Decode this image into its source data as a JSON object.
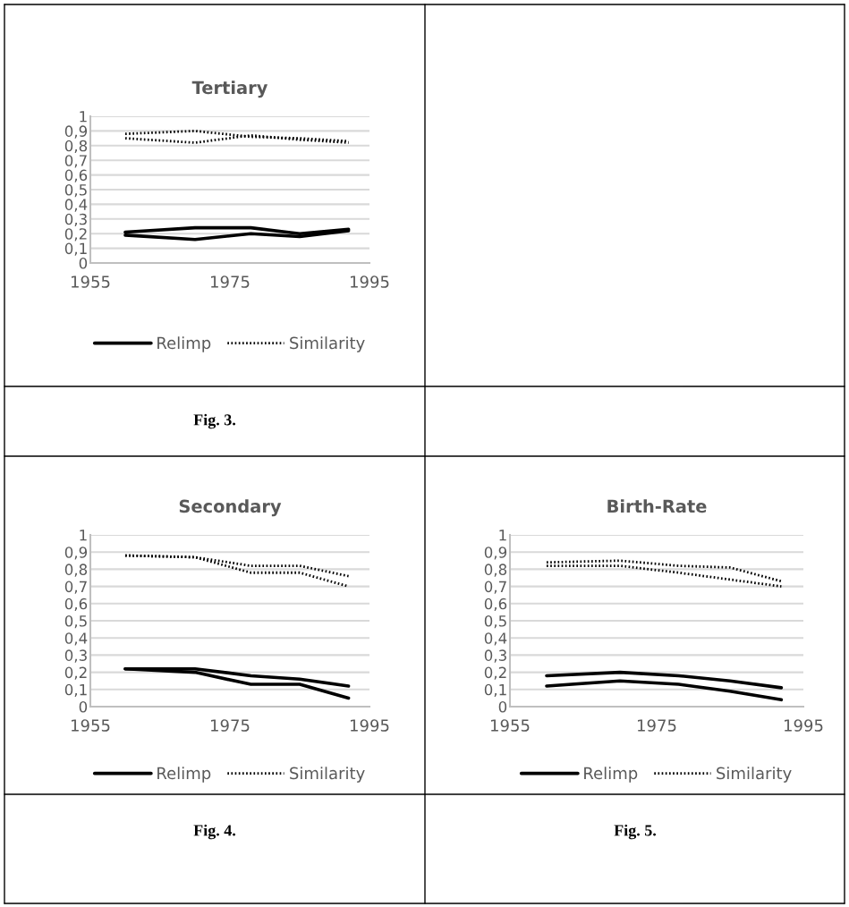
{
  "chart_data": [
    {
      "type": "line",
      "title": "Tertiary",
      "x": [
        1960,
        1970,
        1978,
        1985,
        1992
      ],
      "xlim": [
        1955,
        1995
      ],
      "xticks": [
        1955,
        1975,
        1995
      ],
      "ylim": [
        0,
        1
      ],
      "yticks": [
        0,
        {
          "value": 0.1,
          "label": "0,1"
        },
        {
          "value": 0.2,
          "label": "0,2"
        },
        {
          "value": 0.3,
          "label": "0,3"
        },
        {
          "value": 0.4,
          "label": "0,4"
        },
        {
          "value": 0.5,
          "label": "0,5"
        },
        {
          "value": 0.6,
          "label": "0,6"
        },
        {
          "value": 0.7,
          "label": "0,7"
        },
        {
          "value": 0.8,
          "label": "0,8"
        },
        {
          "value": 0.9,
          "label": "0,9"
        },
        1
      ],
      "grid": "y",
      "legend": "bottom",
      "annotations": [
        "Fig. 3."
      ],
      "series": [
        {
          "name": "Relimp",
          "color": "#000000",
          "line_style": "solid",
          "values": [
            0.21,
            0.24,
            0.24,
            0.2,
            0.23
          ]
        },
        {
          "color": "#000000",
          "line_style": "solid",
          "values": [
            0.19,
            0.16,
            0.2,
            0.18,
            0.22
          ]
        },
        {
          "name": "Similarity",
          "color": "#000000",
          "line_style": "dotted",
          "values": [
            0.88,
            0.9,
            0.86,
            0.85,
            0.83
          ]
        },
        {
          "color": "#000000",
          "line_style": "dotted",
          "values": [
            0.85,
            0.82,
            0.87,
            0.84,
            0.82
          ]
        }
      ]
    },
    {
      "type": "line",
      "title": "Secondary",
      "x": [
        1960,
        1970,
        1978,
        1985,
        1992
      ],
      "xlim": [
        1955,
        1995
      ],
      "xticks": [
        1955,
        1975,
        1995
      ],
      "ylim": [
        0,
        1
      ],
      "yticks": [
        0,
        {
          "value": 0.1,
          "label": "0,1"
        },
        {
          "value": 0.2,
          "label": "0,2"
        },
        {
          "value": 0.3,
          "label": "0,3"
        },
        {
          "value": 0.4,
          "label": "0,4"
        },
        {
          "value": 0.5,
          "label": "0,5"
        },
        {
          "value": 0.6,
          "label": "0,6"
        },
        {
          "value": 0.7,
          "label": "0,7"
        },
        {
          "value": 0.8,
          "label": "0,8"
        },
        {
          "value": 0.9,
          "label": "0,9"
        },
        1
      ],
      "grid": "y",
      "legend": "bottom",
      "annotations": [
        "Fig. 4."
      ],
      "series": [
        {
          "name": "Relimp",
          "color": "#000000",
          "line_style": "solid",
          "values": [
            0.22,
            0.22,
            0.18,
            0.16,
            0.12
          ]
        },
        {
          "color": "#000000",
          "line_style": "solid",
          "values": [
            0.22,
            0.2,
            0.13,
            0.13,
            0.05
          ]
        },
        {
          "name": "Similarity",
          "color": "#000000",
          "line_style": "dotted",
          "values": [
            0.88,
            0.87,
            0.82,
            0.82,
            0.76
          ]
        },
        {
          "color": "#000000",
          "line_style": "dotted",
          "values": [
            0.88,
            0.87,
            0.78,
            0.78,
            0.7
          ]
        }
      ]
    },
    {
      "type": "line",
      "title": "Birth-Rate",
      "x": [
        1960,
        1970,
        1978,
        1985,
        1992
      ],
      "xlim": [
        1955,
        1995
      ],
      "xticks": [
        1955,
        1975,
        1995
      ],
      "ylim": [
        0,
        1
      ],
      "yticks": [
        0,
        {
          "value": 0.1,
          "label": "0,1"
        },
        {
          "value": 0.2,
          "label": "0,2"
        },
        {
          "value": 0.3,
          "label": "0,3"
        },
        {
          "value": 0.4,
          "label": "0,4"
        },
        {
          "value": 0.5,
          "label": "0,5"
        },
        {
          "value": 0.6,
          "label": "0,6"
        },
        {
          "value": 0.7,
          "label": "0,7"
        },
        {
          "value": 0.8,
          "label": "0,8"
        },
        {
          "value": 0.9,
          "label": "0,9"
        },
        1
      ],
      "grid": "y",
      "legend": "bottom",
      "annotations": [
        "Fig. 5."
      ],
      "series": [
        {
          "name": "Relimp",
          "color": "#000000",
          "line_style": "solid",
          "values": [
            0.18,
            0.2,
            0.18,
            0.15,
            0.11
          ]
        },
        {
          "color": "#000000",
          "line_style": "solid",
          "values": [
            0.12,
            0.15,
            0.13,
            0.09,
            0.04
          ]
        },
        {
          "name": "Similarity",
          "color": "#000000",
          "line_style": "dotted",
          "values": [
            0.84,
            0.85,
            0.82,
            0.81,
            0.73
          ]
        },
        {
          "color": "#000000",
          "line_style": "dotted",
          "values": [
            0.82,
            0.82,
            0.78,
            0.74,
            0.7
          ]
        }
      ]
    }
  ]
}
